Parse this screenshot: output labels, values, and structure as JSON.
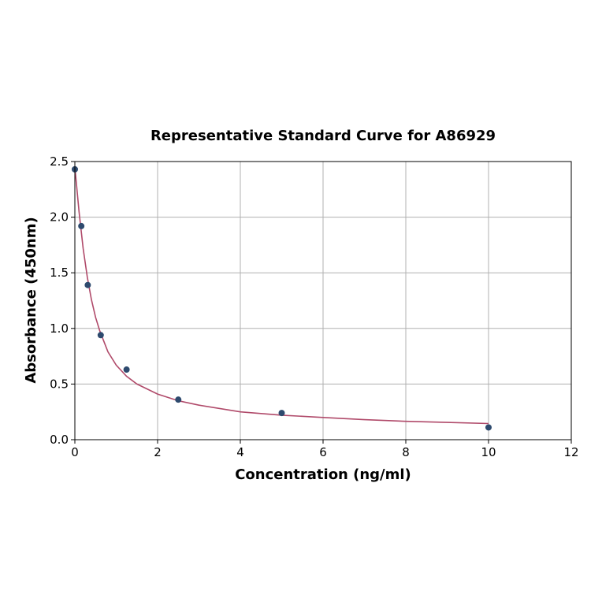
{
  "chart_data": {
    "type": "scatter",
    "title": "Representative Standard Curve for A86929",
    "xlabel": "Concentration (ng/ml)",
    "ylabel": "Absorbance (450nm)",
    "xlim": [
      0,
      12
    ],
    "ylim": [
      0,
      2.5
    ],
    "xticks": [
      "0",
      "2",
      "4",
      "6",
      "8",
      "10",
      "12"
    ],
    "yticks": [
      "0.0",
      "0.5",
      "1.0",
      "1.5",
      "2.0",
      "2.5"
    ],
    "grid": true,
    "series": [
      {
        "kind": "points",
        "x": [
          0,
          0.156,
          0.312,
          0.625,
          1.25,
          2.5,
          5,
          10
        ],
        "y": [
          2.43,
          1.92,
          1.39,
          0.94,
          0.63,
          0.36,
          0.24,
          0.11
        ]
      },
      {
        "kind": "fitted-curve",
        "x": [
          0,
          0.1,
          0.2,
          0.3,
          0.4,
          0.5,
          0.6,
          0.8,
          1.0,
          1.25,
          1.5,
          2.0,
          2.5,
          3.0,
          4.0,
          5.0,
          6.0,
          7.0,
          8.0,
          9.0,
          10.0
        ],
        "y": [
          2.45,
          2.05,
          1.72,
          1.46,
          1.26,
          1.1,
          0.98,
          0.79,
          0.67,
          0.57,
          0.5,
          0.41,
          0.35,
          0.31,
          0.25,
          0.22,
          0.2,
          0.18,
          0.165,
          0.155,
          0.145
        ]
      }
    ],
    "colors": {
      "points": "#2e4a6e",
      "curve": "#b04a6a",
      "grid": "#b0b0b0",
      "axis": "#000000"
    }
  }
}
